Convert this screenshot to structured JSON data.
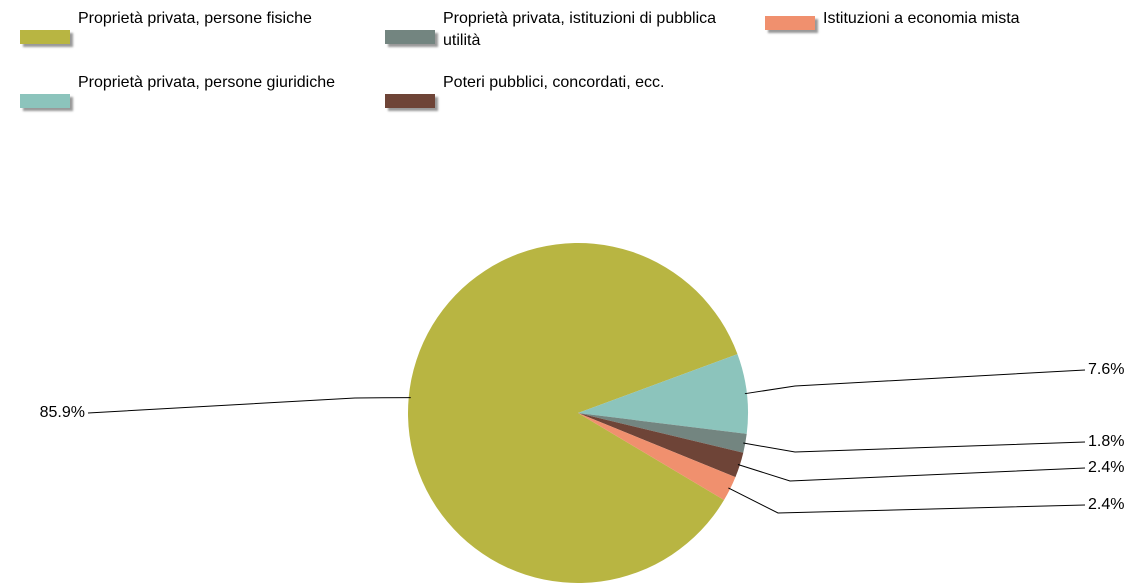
{
  "chart_data": {
    "type": "pie",
    "series": [
      {
        "name": "Proprietà privata, persone fisiche",
        "color": "#b8b542",
        "values": [
          85.9
        ],
        "value_labels": [
          "85.9%"
        ]
      },
      {
        "name": "Proprietà privata, persone giuridiche",
        "color": "#8cc4bc",
        "values": [
          7.6
        ],
        "value_labels": [
          "7.6%"
        ]
      },
      {
        "name": "Proprietà privata, istituzioni di pubblica utilità",
        "color": "#738580",
        "values": [
          1.8
        ],
        "value_labels": [
          "1.8%"
        ]
      },
      {
        "name": "Poteri pubblici, concordati, ecc.",
        "color": "#6e4437",
        "values": [
          2.4
        ],
        "value_labels": [
          "2.4%"
        ]
      },
      {
        "name": "Istituzioni a economia mista",
        "color": "#f0906e",
        "values": [
          2.4
        ],
        "value_labels": [
          "2.4%"
        ]
      }
    ]
  }
}
